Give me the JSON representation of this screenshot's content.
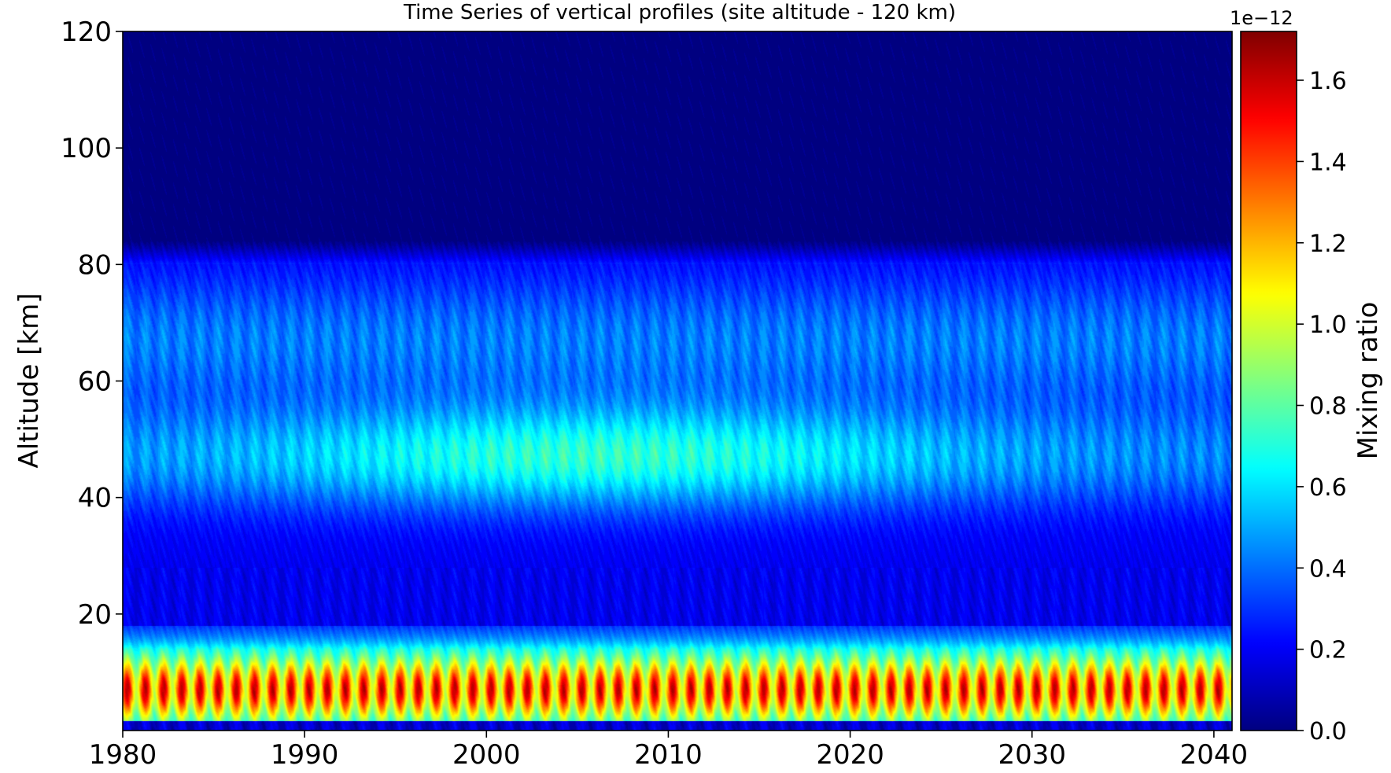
{
  "chart_data": {
    "type": "heatmap",
    "subtype": "filled-contour",
    "title": "Time Series of vertical profiles (site altitude - 120 km)",
    "xlabel": "",
    "ylabel": "Altitude [km]",
    "xlim": [
      1980,
      2041
    ],
    "ylim": [
      0,
      120
    ],
    "x_ticks": [
      1980,
      1990,
      2000,
      2010,
      2020,
      2030,
      2040
    ],
    "y_ticks": [
      20,
      40,
      60,
      80,
      100,
      120
    ],
    "colorbar": {
      "label": "Mixing ratio",
      "offset_text": "1e−12",
      "scale": 1e-12,
      "range": [
        0.0,
        1.72
      ],
      "ticks": [
        "0.0",
        "0.2",
        "0.4",
        "0.6",
        "0.8",
        "1.0",
        "1.2",
        "1.4",
        "1.6"
      ],
      "tick_values": [
        0.0,
        0.2,
        0.4,
        0.6,
        0.8,
        1.0,
        1.2,
        1.4,
        1.6
      ],
      "colormap": "jet",
      "levels": 50
    },
    "features": [
      {
        "altitude_range_km": [
          0,
          2
        ],
        "years": [
          1980,
          2041
        ],
        "value_range": [
          0.05,
          0.3
        ],
        "note": "dark-blue surface band"
      },
      {
        "altitude_range_km": [
          2,
          18
        ],
        "years": [
          1980,
          2041
        ],
        "value_range": [
          0.6,
          1.65
        ],
        "peak_altitude_km": 7,
        "seasonal": true,
        "note": "tropospheric maximum, annual oscillation"
      },
      {
        "altitude_range_km": [
          18,
          30
        ],
        "years": [
          1980,
          2041
        ],
        "value_range": [
          0.18,
          0.38
        ]
      },
      {
        "altitude_range_km": [
          35,
          55
        ],
        "years": [
          1980,
          2041
        ],
        "value_range": [
          0.35,
          0.78
        ],
        "peak_year": 2006,
        "peak_altitude_km": 47,
        "note": "stratospheric maximum"
      },
      {
        "altitude_range_km": [
          55,
          80
        ],
        "years": [
          1980,
          2041
        ],
        "value_range": [
          0.3,
          0.55
        ]
      },
      {
        "altitude_range_km": [
          84,
          120
        ],
        "years": [
          1980,
          2041
        ],
        "value_range": [
          0.0,
          0.02
        ],
        "note": "near zero above ~84 km"
      }
    ]
  }
}
